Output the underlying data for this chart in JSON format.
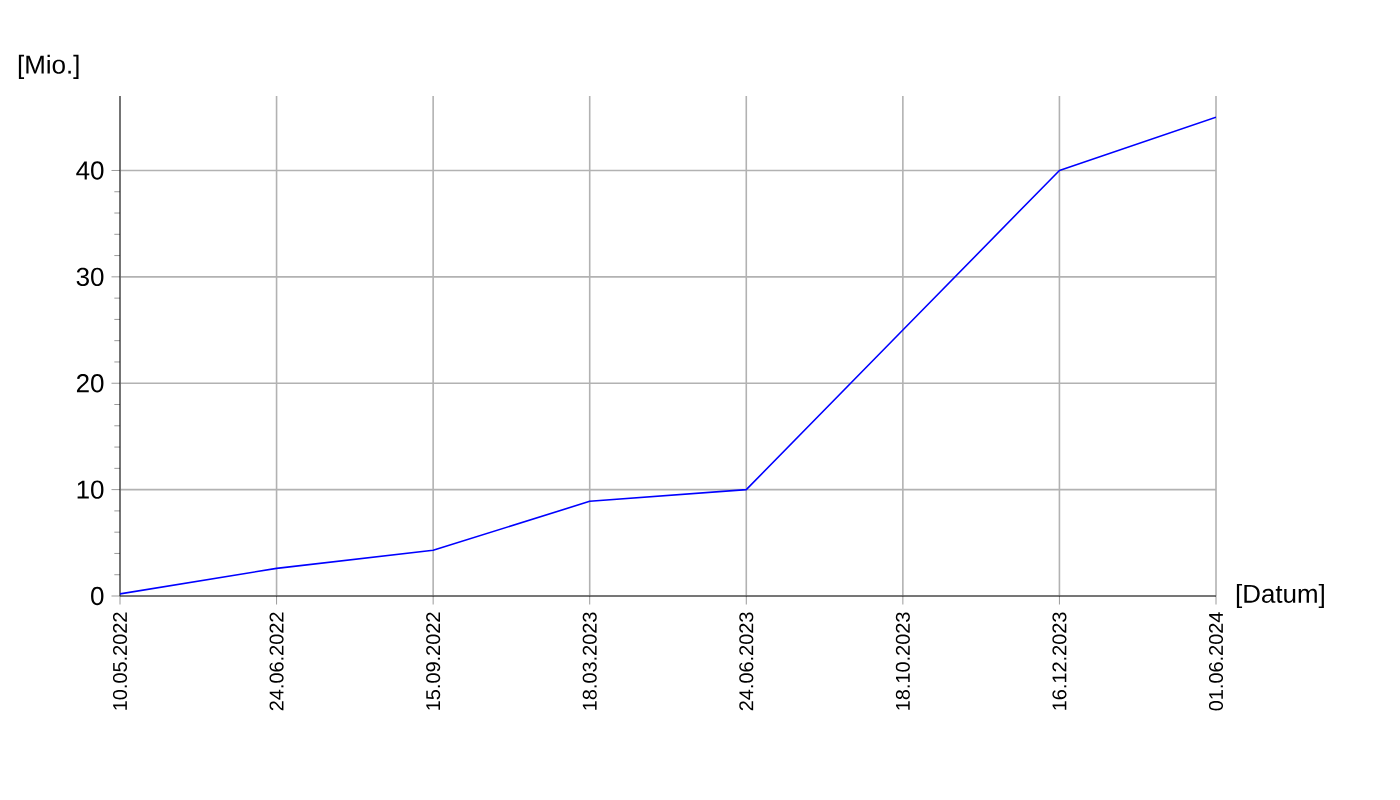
{
  "chart_data": {
    "type": "line",
    "xlabel": "[Datum]",
    "ylabel": "[Mio.]",
    "categories": [
      "10.05.2022",
      "24.06.2022",
      "15.09.2022",
      "18.03.2023",
      "24.06.2023",
      "18.10.2023",
      "16.12.2023",
      "01.06.2024"
    ],
    "series": [
      {
        "color": "#0000ff",
        "values": [
          0.2,
          2.6,
          4.3,
          8.9,
          10,
          25,
          40,
          45
        ]
      }
    ],
    "ylim": [
      0,
      47
    ],
    "yticks": [
      0,
      10,
      20,
      30,
      40
    ],
    "grid": true,
    "marker": "none",
    "line_style": "solid"
  }
}
